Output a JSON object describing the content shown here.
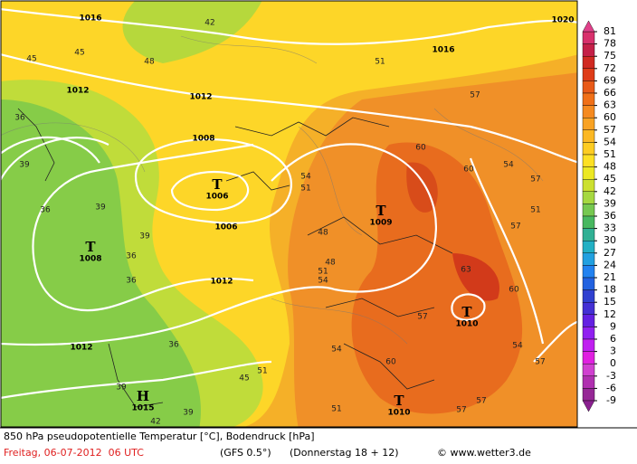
{
  "map": {
    "pressure_centers": [
      {
        "symbol": "T",
        "pressure": "1006"
      },
      {
        "symbol": "T",
        "pressure": "1009"
      },
      {
        "symbol": "T",
        "pressure": "1008"
      },
      {
        "symbol": "T",
        "pressure": "1010"
      },
      {
        "symbol": "H",
        "pressure": "1015"
      },
      {
        "symbol": "T",
        "pressure": "1010"
      }
    ],
    "isobar_labels": [
      "1016",
      "1016",
      "1020",
      "1012",
      "1012",
      "1008",
      "1006",
      "1012",
      "1012"
    ],
    "temperature_labels": [
      "45",
      "42",
      "45",
      "48",
      "51",
      "57",
      "60",
      "60",
      "54",
      "51",
      "54",
      "57",
      "51",
      "57",
      "48",
      "48",
      "51",
      "54",
      "63",
      "60",
      "57",
      "54",
      "57",
      "36",
      "39",
      "36",
      "39",
      "39",
      "36",
      "36",
      "36",
      "39",
      "39",
      "42",
      "45",
      "51",
      "54",
      "60",
      "51",
      "57",
      "57"
    ]
  },
  "colorbar": {
    "ticks": [
      81,
      78,
      75,
      72,
      69,
      66,
      63,
      60,
      57,
      54,
      51,
      48,
      45,
      42,
      39,
      36,
      33,
      30,
      27,
      24,
      21,
      18,
      15,
      12,
      9,
      6,
      3,
      0,
      -3,
      -6,
      -9
    ],
    "colors": [
      "#d8306c",
      "#c42048",
      "#d02a22",
      "#de3c18",
      "#e85a18",
      "#f07018",
      "#f58a20",
      "#f8a224",
      "#fbb824",
      "#fdcc22",
      "#fde024",
      "#ece824",
      "#cce030",
      "#a6d840",
      "#76c850",
      "#48b860",
      "#30b094",
      "#22b0c4",
      "#22a0e0",
      "#2282f0",
      "#2262e0",
      "#3040d0",
      "#4430d4",
      "#6420e2",
      "#9020f0",
      "#c020f0",
      "#e020e0",
      "#d040d0",
      "#b030b0",
      "#962896"
    ],
    "top_color": "#e0408a",
    "bottom_color": "#8a2090"
  },
  "footer": {
    "title": "850 hPa pseudopotentielle Temperatur [°C], Bodendruck [hPa]",
    "date": "Freitag, 06-07-2012  06 UTC",
    "model": "(GFS 0.5°)",
    "run": "(Donnerstag 18 + 12)",
    "credit": "© www.wetter3.de"
  }
}
